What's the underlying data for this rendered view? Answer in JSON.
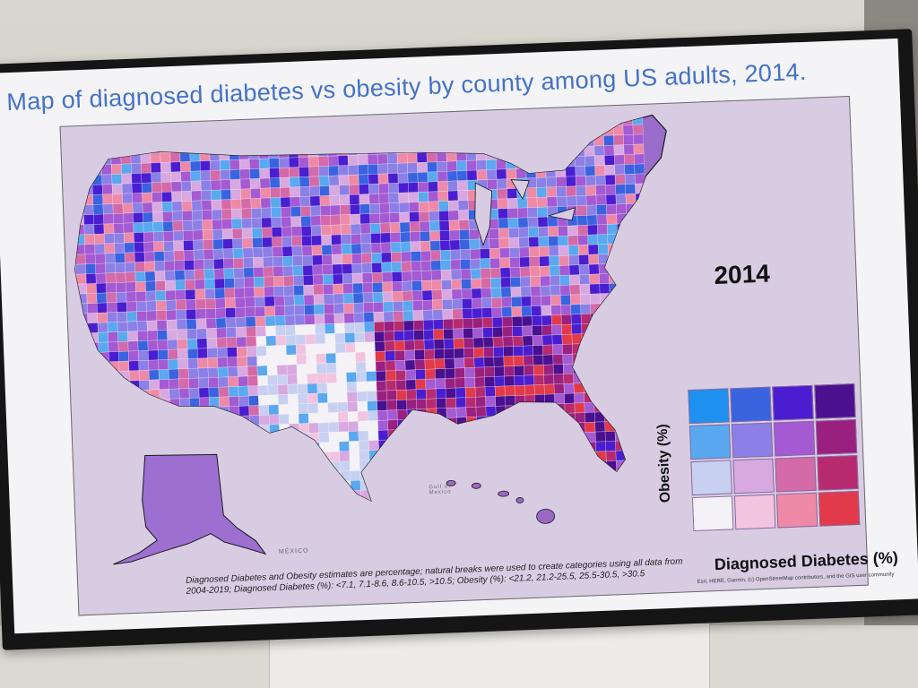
{
  "slide": {
    "title": "Map of diagnosed diabetes vs obesity by county among US adults, 2014."
  },
  "map": {
    "year_label": "2014",
    "place_labels": {
      "mexico": "MÉXICO",
      "gulf": "Gulf of Mexico"
    },
    "colors": {
      "background": "#d8cce3",
      "land_outline": "#1a1a1a"
    },
    "legend": {
      "y_label": "Obesity (%)",
      "x_label": "Diagnosed Diabetes (%)",
      "grid_colors": [
        [
          "#1e90f0",
          "#3a63e0",
          "#4a1ed0",
          "#4a1090"
        ],
        [
          "#5aa8f0",
          "#8c80e6",
          "#a45ad2",
          "#9a2080"
        ],
        [
          "#c8d0f2",
          "#d8a8e0",
          "#d46aa8",
          "#b82a70"
        ],
        [
          "#f4f2f6",
          "#f2c4e0",
          "#ee8aa8",
          "#e23a4a"
        ]
      ]
    },
    "footnote": "Diagnosed Diabetes and Obesity estimates are percentage; natural breaks were used to create categories using all data from 2004-2019; Diagnosed Diabetes (%): <7.1, 7.1-8.6, 8.6-10.5, >10.5; Obesity (%): <21.2, 21.2-25.5, 25.5-30.5, >30.5",
    "credits": "Esri, HERE, Garmin, (c) OpenStreetMap contributors, and the GIS user community"
  }
}
